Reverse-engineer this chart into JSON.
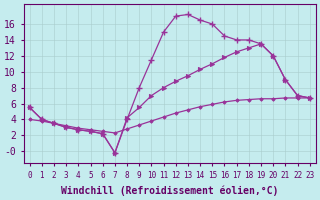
{
  "xlabel": "Windchill (Refroidissement éolien,°C)",
  "bg_color": "#c5ecee",
  "line_color": "#993399",
  "grid_color": "#aacccc",
  "hours": [
    0,
    1,
    2,
    3,
    4,
    5,
    6,
    7,
    8,
    9,
    10,
    11,
    12,
    13,
    14,
    15,
    16,
    17,
    18,
    19,
    20,
    21,
    22,
    23
  ],
  "curve1": [
    5.5,
    4.0,
    3.5,
    3.0,
    2.7,
    2.5,
    2.2,
    -0.2,
    4.0,
    8.0,
    11.5,
    15.0,
    17.0,
    17.2,
    16.5,
    16.0,
    14.5,
    14.0,
    14.0,
    13.5,
    12.0,
    9.0,
    7.0,
    6.7
  ],
  "curve2": [
    5.5,
    4.0,
    3.5,
    3.0,
    2.7,
    2.5,
    2.2,
    -0.2,
    4.2,
    5.5,
    7.0,
    8.0,
    8.8,
    9.5,
    10.3,
    11.0,
    11.8,
    12.5,
    13.0,
    13.5,
    12.0,
    9.0,
    7.0,
    6.7
  ],
  "curve3": [
    4.0,
    3.8,
    3.5,
    3.2,
    2.9,
    2.7,
    2.5,
    2.3,
    2.8,
    3.3,
    3.8,
    4.3,
    4.8,
    5.2,
    5.6,
    5.9,
    6.2,
    6.4,
    6.5,
    6.6,
    6.6,
    6.7,
    6.7,
    6.7
  ],
  "ylim": [
    -1.5,
    18.5
  ],
  "yticks": [
    0,
    2,
    4,
    6,
    8,
    10,
    12,
    14,
    16
  ],
  "ytick_labels": [
    "-0",
    "2",
    "4",
    "6",
    "8",
    "10",
    "12",
    "14",
    "16"
  ],
  "font_color": "#660066",
  "font_size": 7
}
